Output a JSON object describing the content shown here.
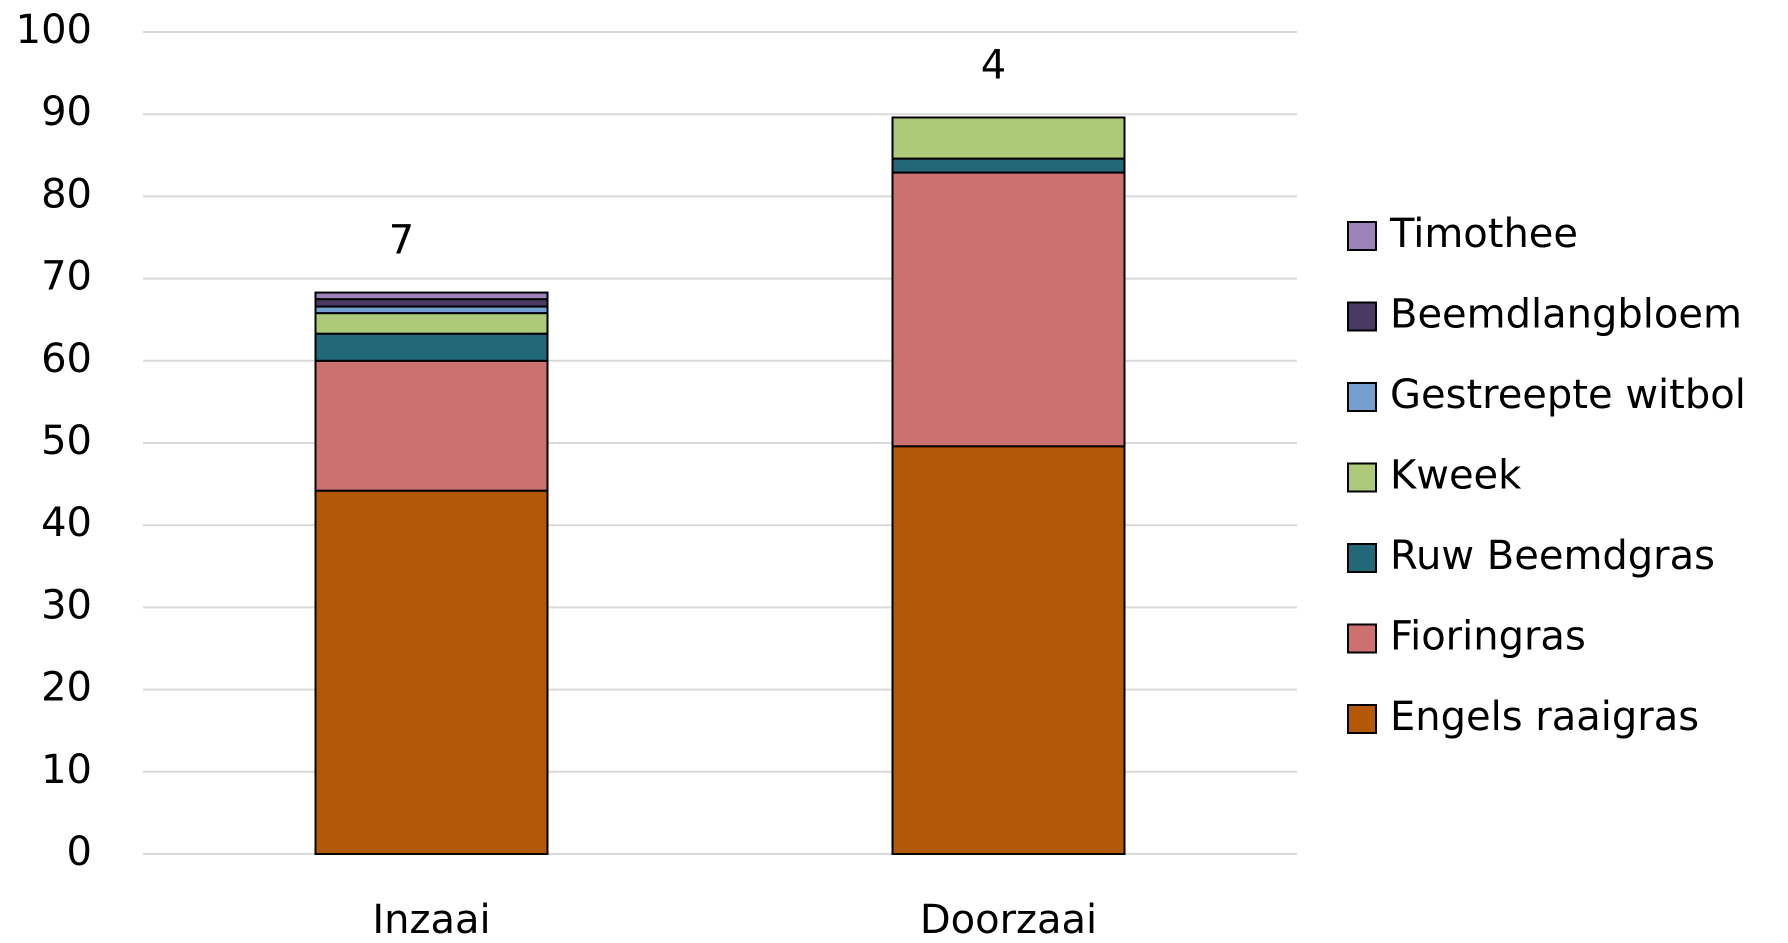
{
  "chart_data": {
    "type": "stacked_bar",
    "categories": [
      "Inzaai",
      "Doorzaai"
    ],
    "annotations": [
      "7",
      "4"
    ],
    "series": [
      {
        "name": "Engels raaigras",
        "color": "#b35806",
        "values": [
          44.2,
          49.6
        ]
      },
      {
        "name": "Fioringras",
        "color": "#cd7070",
        "values": [
          15.8,
          33.3
        ]
      },
      {
        "name": "Ruw Beemdgras",
        "color": "#226878",
        "values": [
          3.3,
          1.7
        ]
      },
      {
        "name": "Kweek",
        "color": "#adc97a",
        "values": [
          2.5,
          5.0
        ]
      },
      {
        "name": "Gestreepte witbol",
        "color": "#759fcf",
        "values": [
          0.8,
          0
        ]
      },
      {
        "name": "Beemdlangbloem",
        "color": "#4a3a63",
        "values": [
          0.9,
          0
        ]
      },
      {
        "name": "Timothee",
        "color": "#9d84b8",
        "values": [
          0.8,
          0
        ]
      }
    ],
    "ylim": [
      0,
      100
    ],
    "yticks": [
      0,
      10,
      20,
      30,
      40,
      50,
      60,
      70,
      80,
      90,
      100
    ],
    "grid": true,
    "legend": "right"
  }
}
